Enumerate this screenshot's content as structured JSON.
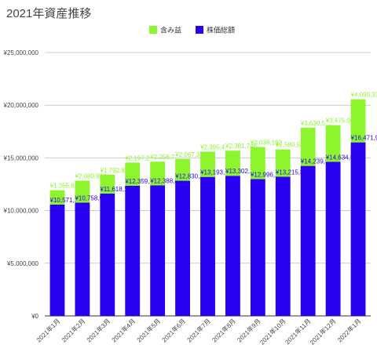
{
  "chart_data": {
    "type": "bar",
    "stacked": true,
    "title": "2021年資産推移",
    "categories": [
      "2021年1月",
      "2021年2月",
      "2021年3月",
      "2021年4月",
      "2021年5月",
      "2021年6月",
      "2021年7月",
      "2021年8月",
      "2021年9月",
      "2021年10月",
      "2021年11月",
      "2021年12月",
      "2022年1月"
    ],
    "series": [
      {
        "name": "株価総額",
        "color": "#2a00f0",
        "values": [
          10571270,
          10758937,
          11618190,
          12359000,
          12388856,
          12830232,
          13193000,
          13302106,
          12996297,
          13215884,
          14239556,
          14634566,
          16471988
        ],
        "labels": [
          "¥10,571,2…",
          "¥10,758,937",
          "¥11,618,190",
          "¥12,359,…",
          "¥12,388,856",
          "¥12,830,232",
          "¥13,193,…",
          "¥13,302,106",
          "¥12,996,297",
          "¥13,215,884",
          "¥14,239,556",
          "¥14,634,566",
          "¥16,471,988"
        ]
      },
      {
        "name": "含み益",
        "color": "#8cf52d",
        "values": [
          1355616,
          2080834,
          1792822,
          2197200,
          2256770,
          2067310,
          2395400,
          2381748,
          3038192,
          2580545,
          3630546,
          3475063,
          4090337
        ],
        "labels": [
          "¥1,355,616",
          "¥2,080,834",
          "¥1,792,822",
          "¥2,197,2…",
          "¥2,256,7…",
          "¥2,067,310",
          "¥2,395,4…",
          "¥2,381,748",
          "¥3,038,192",
          "¥2,580,545",
          "¥3,630,5…",
          "¥3,475,063",
          "¥4,090,337"
        ]
      }
    ],
    "legend_order": [
      1,
      0
    ],
    "legend_position": "top",
    "ylim": [
      0,
      25000000
    ],
    "yticks": [
      0,
      5000000,
      10000000,
      15000000,
      20000000,
      25000000
    ],
    "ytick_labels": [
      "¥0",
      "¥5,000,000",
      "¥10,000,000",
      "¥15,000,000",
      "¥20,000,000",
      "¥25,000,000"
    ],
    "grid": true,
    "xlabel": "",
    "ylabel": ""
  }
}
